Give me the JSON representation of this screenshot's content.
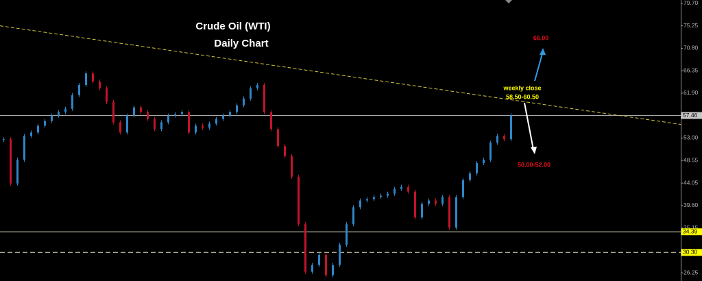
{
  "chart_data": {
    "type": "candlestick",
    "title": "Crude Oil (WTI)",
    "subtitle": "Daily Chart",
    "series": [
      {
        "up_color": "#2f86c8",
        "down_color": "#c4142a",
        "values": [
          52.74,
          43.97,
          48.69,
          53.41,
          54.08,
          55.43,
          56.38,
          57.45,
          58.13,
          58.8,
          61.5,
          63.52,
          65.81,
          64.19,
          62.85,
          60.15,
          56.11,
          54.08,
          57.45,
          59.07,
          58.13,
          56.78,
          54.76,
          56.11,
          57.45,
          57.72,
          58.13,
          54.08,
          55.43,
          55.03,
          55.84,
          56.78,
          57.45,
          58.13,
          59.48,
          60.82,
          62.85,
          63.52,
          58.13,
          54.76,
          51.39,
          49.37,
          45.32,
          35.89,
          26.45,
          27.8,
          29.82,
          25.78,
          27.8,
          31.84,
          35.89,
          39.26,
          40.6,
          40.87,
          41.28,
          41.55,
          41.95,
          42.9,
          43.3,
          42.36,
          37.24,
          39.93,
          40.6,
          39.93,
          41.28,
          35.21,
          41.28,
          44.65,
          45.99,
          48.02,
          48.69,
          52.06,
          53.41,
          52.74,
          57.46
        ]
      }
    ],
    "ylim": [
      24.63,
      80.37
    ],
    "yticks": [
      {
        "value": 79.7,
        "label": "79.70"
      },
      {
        "value": 75.25,
        "label": "75.25"
      },
      {
        "value": 70.8,
        "label": "70.80"
      },
      {
        "value": 66.35,
        "label": "66.35"
      },
      {
        "value": 61.9,
        "label": "61.90"
      },
      {
        "value": 53,
        "label": "53.00"
      },
      {
        "value": 48.55,
        "label": "48.55"
      },
      {
        "value": 44.05,
        "label": "44.05"
      },
      {
        "value": 39.6,
        "label": "39.60"
      },
      {
        "value": 35.15,
        "label": "35.15"
      },
      {
        "value": 26.25,
        "label": "26.25"
      }
    ],
    "levels": [
      {
        "value": 57.46,
        "label": "57.46",
        "color": "#c8c8c8",
        "dashed": false
      },
      {
        "value": 34.39,
        "label": "34.39",
        "color": "#ffff00",
        "dashed": false
      },
      {
        "value": 30.3,
        "label": "30.30",
        "color": "#ffff00",
        "dashed": true
      }
    ],
    "trendline": {
      "values": [
        75.25,
        55.7
      ],
      "color": "#d4c640"
    },
    "annotations": {
      "target_up": "66.00",
      "weekly_close": "weekly close",
      "weekly_range": "58.50-60.50",
      "target_down": "50.00-52.00"
    }
  }
}
